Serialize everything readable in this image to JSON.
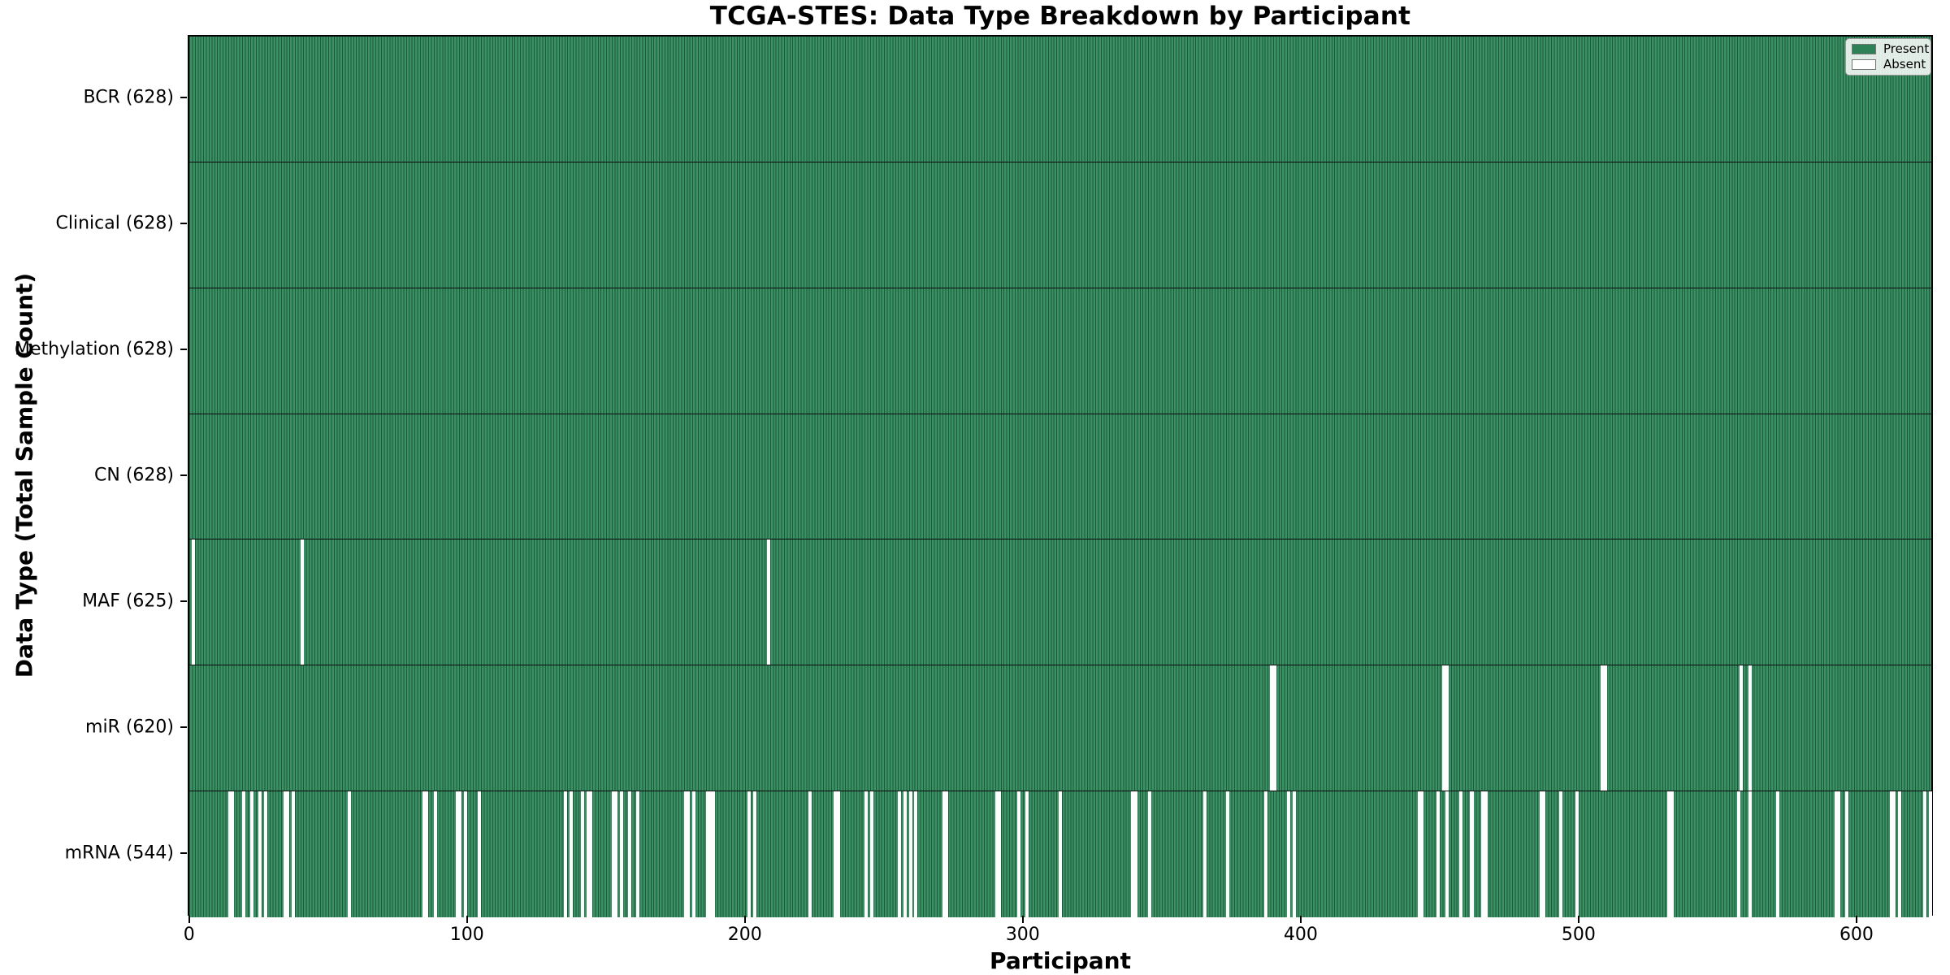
{
  "chart_data": {
    "type": "heatmap",
    "title": "TCGA-STES: Data Type Breakdown by Participant",
    "xlabel": "Participant",
    "ylabel": "Data Type (Total Sample Count)",
    "n_participants": 628,
    "x_ticks": [
      0,
      100,
      200,
      300,
      400,
      500,
      600
    ],
    "xlim": [
      -0.5,
      627.5
    ],
    "grid": false,
    "legend_position": "upper-right",
    "colors": {
      "present": "#35895d",
      "present_stripe_edge": "#1e5237",
      "absent": "#fdfdfd",
      "row_separator": "#0b0b0b",
      "plot_border": "#000000"
    },
    "legend": [
      {
        "label": "Present",
        "color": "#2e8057"
      },
      {
        "label": "Absent",
        "color": "#ffffff"
      }
    ],
    "rows": [
      {
        "label": "BCR (628)",
        "data_type": "BCR",
        "present_count": 628,
        "total": 628,
        "absent_participants": []
      },
      {
        "label": "Clinical (628)",
        "data_type": "Clinical",
        "present_count": 628,
        "total": 628,
        "absent_participants": []
      },
      {
        "label": "Methylation (628)",
        "data_type": "Methylation",
        "present_count": 628,
        "total": 628,
        "absent_participants": []
      },
      {
        "label": "CN (628)",
        "data_type": "CN",
        "present_count": 628,
        "total": 628,
        "absent_participants": []
      },
      {
        "label": "MAF (625)",
        "data_type": "MAF",
        "present_count": 625,
        "total": 628,
        "absent_participants": [
          1,
          40,
          208
        ]
      },
      {
        "label": "miR (620)",
        "data_type": "miR",
        "present_count": 620,
        "total": 628,
        "absent_participants": [
          389,
          390,
          451,
          452,
          508,
          509,
          558,
          561
        ]
      },
      {
        "label": "mRNA (544)",
        "data_type": "mRNA",
        "present_count": 544,
        "total": 628,
        "absent_participants": [
          14,
          15,
          19,
          22,
          25,
          27,
          34,
          35,
          37,
          57,
          84,
          85,
          88,
          96,
          97,
          99,
          104,
          135,
          137,
          141,
          143,
          144,
          152,
          153,
          155,
          158,
          161,
          178,
          179,
          181,
          186,
          187,
          188,
          201,
          203,
          223,
          232,
          233,
          243,
          245,
          255,
          257,
          259,
          261,
          271,
          272,
          290,
          291,
          298,
          301,
          313,
          339,
          340,
          345,
          365,
          373,
          387,
          395,
          397,
          442,
          443,
          449,
          452,
          457,
          461,
          465,
          466,
          486,
          487,
          493,
          499,
          532,
          533,
          557,
          561,
          571,
          592,
          593,
          596,
          612,
          613,
          615,
          624,
          626
        ]
      }
    ]
  }
}
